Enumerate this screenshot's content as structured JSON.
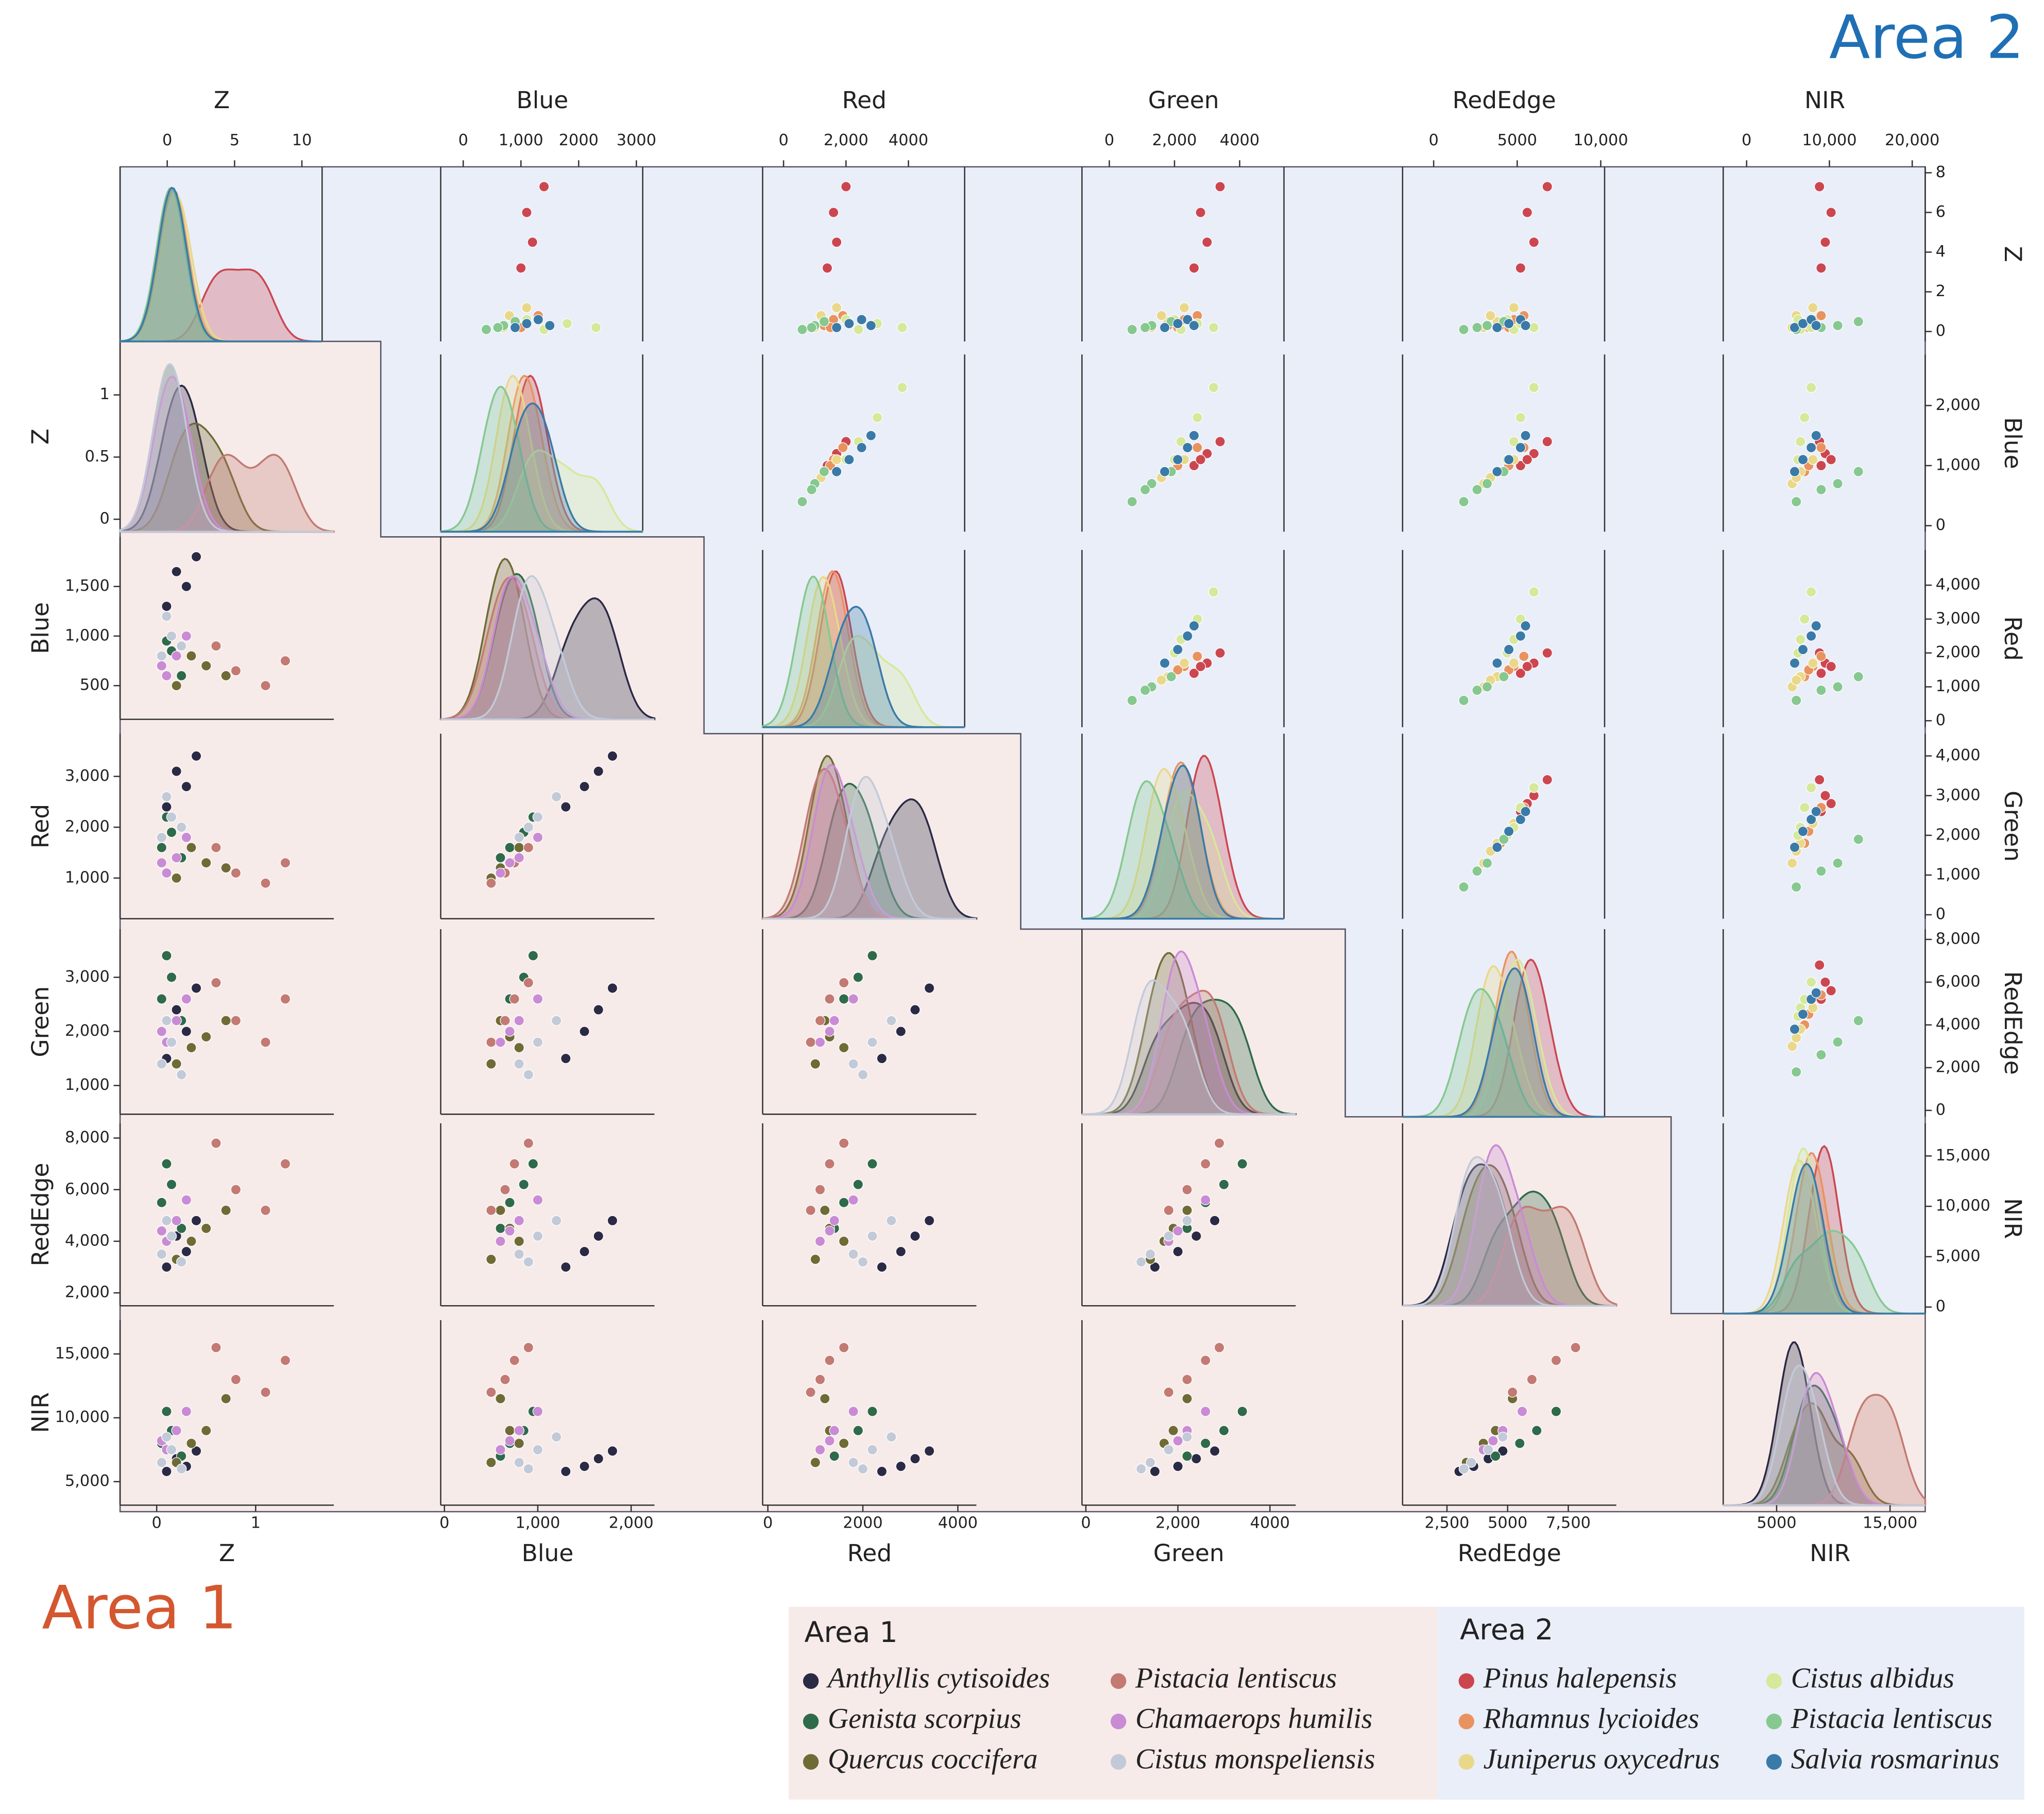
{
  "chart_data": {
    "type": "scatter",
    "variables": [
      "Z",
      "Blue",
      "Red",
      "Green",
      "RedEdge",
      "NIR"
    ],
    "areas": [
      {
        "name": "Area 1",
        "axes": [
          {
            "xlim": [
              -0.37,
              1.79
            ],
            "xticks": [
              0,
              1
            ],
            "ylim": [
              -0.1,
              1.43
            ],
            "yticks": [
              0,
              0.5,
              1
            ]
          },
          {
            "xlim": [
              -40,
              2250
            ],
            "xticks": [
              0,
              {
                "value": 1000,
                "label": "1,000"
              },
              {
                "value": 2000,
                "label": "2,000"
              }
            ],
            "ylim": [
              160,
              2000
            ],
            "yticks": [
              500,
              {
                "value": 1000,
                "label": "1,000"
              },
              {
                "value": 1500,
                "label": "1,500"
              }
            ]
          },
          {
            "xlim": [
              -110,
              4390
            ],
            "xticks": [
              0,
              2000,
              4000
            ],
            "ylim": [
              200,
              3840
            ],
            "yticks": [
              {
                "value": 1000,
                "label": "1,000"
              },
              {
                "value": 2000,
                "label": "2,000"
              },
              {
                "value": 3000,
                "label": "3,000"
              }
            ]
          },
          {
            "xlim": [
              -85,
              4560
            ],
            "xticks": [
              0,
              {
                "value": 2000,
                "label": "2,000"
              },
              4000
            ],
            "ylim": [
              470,
              3890
            ],
            "yticks": [
              {
                "value": 1000,
                "label": "1,000"
              },
              {
                "value": 2000,
                "label": "2,000"
              },
              {
                "value": 3000,
                "label": "3,000"
              }
            ]
          },
          {
            "xlim": [
              670,
              9480
            ],
            "xticks": [
              {
                "value": 2500,
                "label": "2,500"
              },
              5000,
              {
                "value": 7500,
                "label": "7,500"
              }
            ],
            "ylim": [
              1500,
              8570
            ],
            "yticks": [
              {
                "value": 2000,
                "label": "2,000"
              },
              {
                "value": 4000,
                "label": "4,000"
              },
              {
                "value": 6000,
                "label": "6,000"
              },
              {
                "value": 8000,
                "label": "8,000"
              }
            ]
          },
          {
            "xlim": [
              290,
              18100
            ],
            "xticks": [
              5000,
              {
                "value": 15000,
                "label": "15,000"
              }
            ],
            "ylim": [
              3160,
              17650
            ],
            "yticks": [
              {
                "value": 5000,
                "label": "5,000"
              },
              {
                "value": 10000,
                "label": "10,000"
              },
              {
                "value": 15000,
                "label": "15,000"
              }
            ]
          }
        ],
        "series": [
          {
            "name": "Anthyllis cytisoides",
            "color": "#2b2a45",
            "points": [
              [
                0.1,
                1300,
                2400,
                1500,
                3000,
                5800
              ],
              [
                0.3,
                1500,
                2800,
                2000,
                3600,
                6200
              ],
              [
                0.2,
                1650,
                3100,
                2400,
                4200,
                6800
              ],
              [
                0.4,
                1800,
                3400,
                2800,
                4800,
                7400
              ]
            ]
          },
          {
            "name": "Genista scorpius",
            "color": "#2f6a4a",
            "points": [
              [
                0.05,
                700,
                1600,
                2600,
                5500,
                8000
              ],
              [
                0.15,
                850,
                1900,
                3000,
                6200,
                9000
              ],
              [
                0.1,
                950,
                2200,
                3400,
                7000,
                10500
              ],
              [
                0.25,
                600,
                1400,
                2200,
                4500,
                7000
              ]
            ]
          },
          {
            "name": "Quercus coccifera",
            "color": "#6f6b35",
            "points": [
              [
                0.2,
                500,
                1000,
                1400,
                3300,
                6500
              ],
              [
                0.5,
                700,
                1300,
                1900,
                4500,
                9000
              ],
              [
                0.7,
                600,
                1200,
                2200,
                5200,
                11500
              ],
              [
                0.35,
                800,
                1600,
                1700,
                4000,
                8000
              ]
            ]
          },
          {
            "name": "Pistacia lentiscus",
            "color": "#c27a72",
            "points": [
              [
                0.8,
                650,
                1100,
                2200,
                6000,
                13000
              ],
              [
                1.1,
                500,
                900,
                1800,
                5200,
                12000
              ],
              [
                1.3,
                750,
                1300,
                2600,
                7000,
                14500
              ],
              [
                0.6,
                900,
                1600,
                2900,
                7800,
                15500
              ]
            ]
          },
          {
            "name": "Chamaerops humilis",
            "color": "#c98bd4",
            "points": [
              [
                0.1,
                600,
                1100,
                1800,
                4000,
                7500
              ],
              [
                0.2,
                800,
                1400,
                2200,
                4800,
                9000
              ],
              [
                0.3,
                1000,
                1800,
                2600,
                5600,
                10500
              ],
              [
                0.05,
                700,
                1300,
                2000,
                4400,
                8200
              ]
            ]
          },
          {
            "name": "Cistus monspeliensis",
            "color": "#c2cad8",
            "points": [
              [
                0.05,
                800,
                1800,
                1400,
                3500,
                6500
              ],
              [
                0.15,
                1000,
                2200,
                1800,
                4200,
                7500
              ],
              [
                0.1,
                1200,
                2600,
                2200,
                4800,
                8500
              ],
              [
                0.25,
                900,
                2000,
                1200,
                3200,
                6000
              ]
            ]
          }
        ]
      },
      {
        "name": "Area 2",
        "axes": [
          {
            "xlim": [
              -3.5,
              11.5
            ],
            "xticks": [
              0,
              5,
              10
            ],
            "ylim": [
              -0.5,
              8.3
            ],
            "yticks": [
              0,
              2,
              4,
              6,
              8
            ]
          },
          {
            "xlim": [
              -390,
              3110
            ],
            "xticks": [
              0,
              {
                "value": 1000,
                "label": "1,000"
              },
              2000,
              3000
            ],
            "ylim": [
              -100,
              2850
            ],
            "yticks": [
              0,
              {
                "value": 1000,
                "label": "1,000"
              },
              {
                "value": 2000,
                "label": "2,000"
              }
            ]
          },
          {
            "xlim": [
              -670,
              5800
            ],
            "xticks": [
              0,
              {
                "value": 2000,
                "label": "2,000"
              },
              4000
            ],
            "ylim": [
              -190,
              5040
            ],
            "yticks": [
              0,
              {
                "value": 1000,
                "label": "1,000"
              },
              {
                "value": 2000,
                "label": "2,000"
              },
              {
                "value": 3000,
                "label": "3,000"
              },
              {
                "value": 4000,
                "label": "4,000"
              }
            ]
          },
          {
            "xlim": [
              -840,
              5360
            ],
            "xticks": [
              0,
              {
                "value": 2000,
                "label": "2,000"
              },
              4000
            ],
            "ylim": [
              -100,
              4560
            ],
            "yticks": [
              0,
              {
                "value": 1000,
                "label": "1,000"
              },
              {
                "value": 2000,
                "label": "2,000"
              },
              {
                "value": 3000,
                "label": "3,000"
              },
              {
                "value": 4000,
                "label": "4,000"
              }
            ]
          },
          {
            "xlim": [
              -1860,
              10230
            ],
            "xticks": [
              0,
              5000,
              {
                "value": 10000,
                "label": "10,000"
              }
            ],
            "ylim": [
              -300,
              8480
            ],
            "yticks": [
              0,
              {
                "value": 2000,
                "label": "2,000"
              },
              {
                "value": 4000,
                "label": "4,000"
              },
              {
                "value": 6000,
                "label": "6,000"
              },
              {
                "value": 8000,
                "label": "8,000"
              }
            ]
          },
          {
            "xlim": [
              -2830,
              21570
            ],
            "xticks": [
              0,
              {
                "value": 10000,
                "label": "10,000"
              },
              {
                "value": 20000,
                "label": "20,000"
              }
            ],
            "ylim": [
              -650,
              18240
            ],
            "yticks": [
              0,
              {
                "value": 5000,
                "label": "5,000"
              },
              {
                "value": 10000,
                "label": "10,000"
              },
              {
                "value": 15000,
                "label": "15,000"
              }
            ]
          }
        ],
        "series": [
          {
            "name": "Pinus halepensis",
            "color": "#cc4650",
            "points": [
              [
                3.2,
                1000,
                1400,
                2600,
                5200,
                9000
              ],
              [
                4.5,
                1200,
                1700,
                3000,
                6000,
                9500
              ],
              [
                6.0,
                1100,
                1600,
                2800,
                5600,
                10200
              ],
              [
                7.3,
                1400,
                2000,
                3400,
                6800,
                8800
              ]
            ]
          },
          {
            "name": "Rhamnus lycioides",
            "color": "#e8935f",
            "points": [
              [
                0.3,
                900,
                1300,
                1800,
                4000,
                7000
              ],
              [
                0.6,
                1100,
                1600,
                2300,
                4800,
                8000
              ],
              [
                0.8,
                1300,
                1900,
                2700,
                5400,
                9000
              ],
              [
                0.2,
                1000,
                1500,
                2100,
                4500,
                7500
              ]
            ]
          },
          {
            "name": "Juniperus oxycedrus",
            "color": "#ead88a",
            "points": [
              [
                0.2,
                700,
                1000,
                1300,
                3000,
                5500
              ],
              [
                0.5,
                900,
                1300,
                1800,
                3800,
                6500
              ],
              [
                1.2,
                1100,
                1700,
                2300,
                4800,
                8000
              ],
              [
                0.8,
                800,
                1200,
                1600,
                3400,
                6000
              ]
            ]
          },
          {
            "name": "Cistus albidus",
            "color": "#d6e89a",
            "points": [
              [
                0.1,
                1400,
                2400,
                2200,
                4800,
                6500
              ],
              [
                0.4,
                1800,
                3000,
                2700,
                5200,
                7000
              ],
              [
                0.2,
                2300,
                3800,
                3200,
                6000,
                7800
              ],
              [
                0.6,
                1100,
                2000,
                2000,
                4400,
                6200
              ]
            ]
          },
          {
            "name": "Pistacia lentiscus",
            "color": "#86c890",
            "points": [
              [
                0.1,
                400,
                600,
                700,
                1800,
                6000
              ],
              [
                0.3,
                700,
                1000,
                1300,
                3200,
                11000
              ],
              [
                0.5,
                900,
                1300,
                1900,
                4200,
                13500
              ],
              [
                0.2,
                600,
                900,
                1100,
                2600,
                9000
              ]
            ]
          },
          {
            "name": "Salvia rosmarinus",
            "color": "#3a7aa8",
            "points": [
              [
                0.2,
                900,
                1700,
                1700,
                3800,
                5800
              ],
              [
                0.4,
                1100,
                2100,
                2100,
                4500,
                6800
              ],
              [
                0.6,
                1300,
                2500,
                2400,
                5200,
                7800
              ],
              [
                0.3,
                1500,
                2800,
                2600,
                5500,
                8400
              ]
            ]
          }
        ]
      }
    ]
  }
}
